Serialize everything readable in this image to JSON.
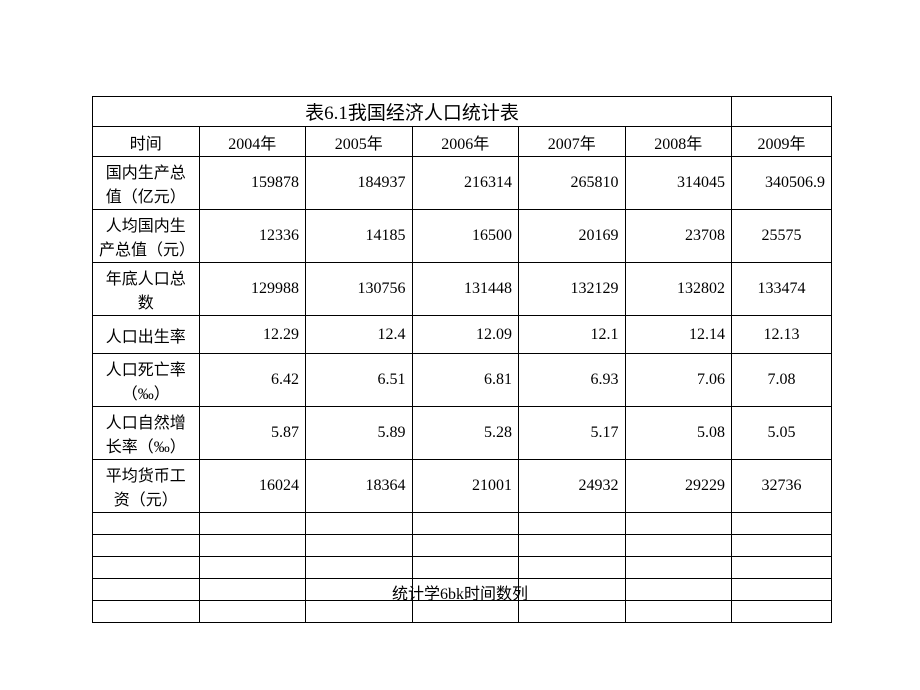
{
  "table": {
    "title": "表6.1我国经济人口统计表",
    "columns": [
      "时间",
      "2004年",
      "2005年",
      "2006年",
      "2007年",
      "2008年",
      "2009年"
    ],
    "rows": [
      {
        "label": "国内生产总值（亿元）",
        "values": [
          "159878",
          "184937",
          "216314",
          "265810",
          "314045",
          "340506.9"
        ],
        "tall": true
      },
      {
        "label": "人均国内生产总值（元）",
        "values": [
          "12336",
          "14185",
          "16500",
          "20169",
          "23708",
          "25575"
        ],
        "tall": true,
        "last_center": true
      },
      {
        "label": "年底人口总数",
        "values": [
          "129988",
          "130756",
          "131448",
          "132129",
          "132802",
          "133474"
        ],
        "tall": true,
        "last_center": true
      },
      {
        "label": "人口出生率",
        "values": [
          "12.29",
          "12.4",
          "12.09",
          "12.1",
          "12.14",
          "12.13"
        ],
        "tall": true,
        "last_center": true
      },
      {
        "label": "人口死亡率（‰）",
        "values": [
          "6.42",
          "6.51",
          "6.81",
          "6.93",
          "7.06",
          "7.08"
        ],
        "tall": false,
        "last_center": true
      },
      {
        "label": "人口自然增长率（‰）",
        "values": [
          "5.87",
          "5.89",
          "5.28",
          "5.17",
          "5.08",
          "5.05"
        ],
        "tall": false,
        "last_center": true
      },
      {
        "label": "平均货币工资（元）",
        "values": [
          "16024",
          "18364",
          "21001",
          "24932",
          "29229",
          "32736"
        ],
        "tall": false,
        "last_center": true
      }
    ],
    "empty_row_count": 5
  },
  "caption": "统计学6bk时间数列",
  "style": {
    "background_color": "#ffffff",
    "border_color": "#000000",
    "text_color": "#000000",
    "title_fontsize": 19,
    "cell_fontsize": 16,
    "caption_fontsize": 16,
    "col_widths": {
      "label": 178,
      "data": 84,
      "last": 100
    },
    "row_heights": {
      "normal": 30,
      "tall": 38,
      "empty": 22
    }
  }
}
